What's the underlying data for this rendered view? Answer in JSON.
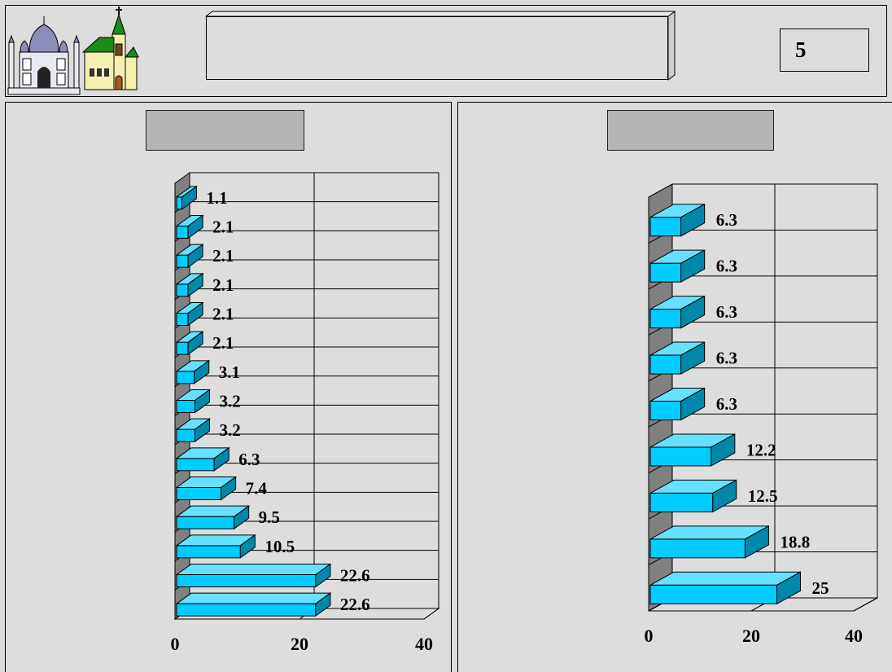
{
  "header": {
    "title": "",
    "page_number": "5",
    "icons": [
      "mosque-icon",
      "church-icon"
    ]
  },
  "colors": {
    "background": "#dddddd",
    "bar_front": "#00ccff",
    "bar_top": "#66e0ff",
    "bar_side": "#0088aa",
    "sublabel_fill": "#b4b4b4"
  },
  "chart_data": [
    {
      "type": "bar",
      "orientation": "horizontal",
      "style": "3d",
      "title": "",
      "xlim": [
        0,
        40
      ],
      "x_ticks": [
        "0",
        "20",
        "40"
      ],
      "values": [
        1.1,
        2.1,
        2.1,
        2.1,
        2.1,
        2.1,
        3.1,
        3.2,
        3.2,
        6.3,
        7.4,
        9.5,
        10.5,
        22.6,
        22.6
      ],
      "value_labels": [
        "1.1",
        "2.1",
        "2.1",
        "2.1",
        "2.1",
        "2.1",
        "3.1",
        "3.2",
        "3.2",
        "6.3",
        "7.4",
        "9.5",
        "10.5",
        "22.6",
        "22.6"
      ],
      "grid": true,
      "legend": "none"
    },
    {
      "type": "bar",
      "orientation": "horizontal",
      "style": "3d",
      "title": "",
      "xlim": [
        0,
        40
      ],
      "x_ticks": [
        "0",
        "20",
        "40"
      ],
      "values": [
        6.3,
        6.3,
        6.3,
        6.3,
        6.3,
        12.2,
        12.5,
        18.8,
        25
      ],
      "value_labels": [
        "6.3",
        "6.3",
        "6.3",
        "6.3",
        "6.3",
        "12.2",
        "12.5",
        "18.8",
        "25"
      ],
      "grid": true,
      "legend": "none"
    }
  ]
}
